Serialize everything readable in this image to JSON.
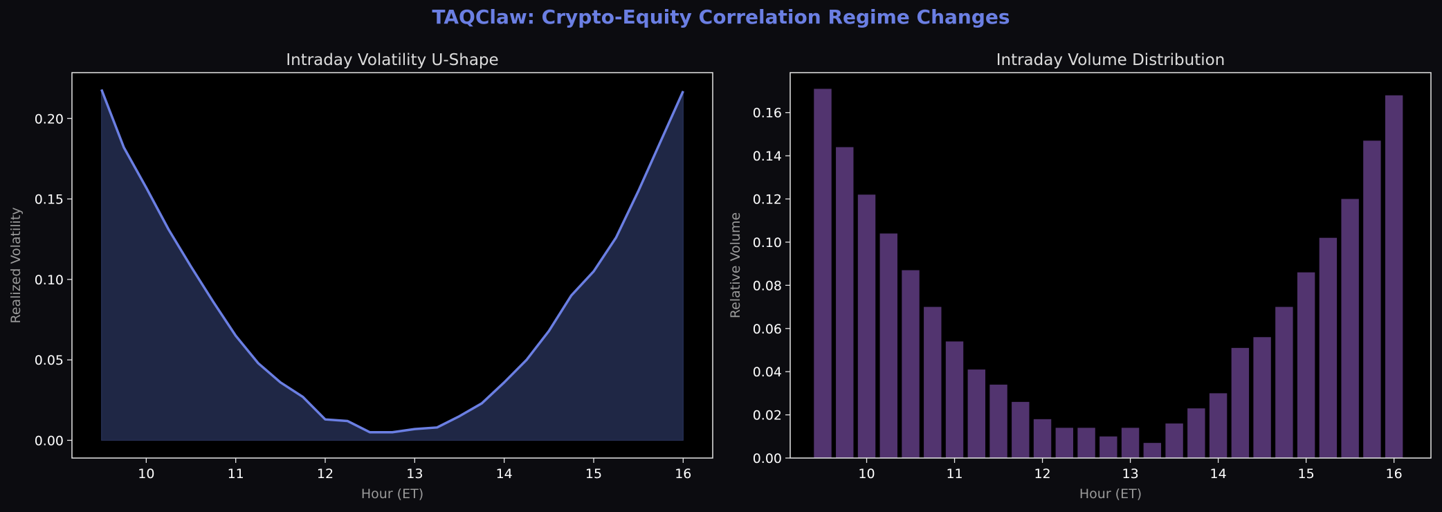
{
  "suptitle": "TAQClaw: Crypto-Equity Correlation Regime Changes",
  "colors": {
    "figure_bg": "#0c0c10",
    "axes_bg": "#000000",
    "spine": "#e6e6e6",
    "line": "#6b7fe3",
    "area_fill": "#1f2745",
    "bar": "#52346f",
    "title_text": "#dcdcdc",
    "label_text": "#9a9a9a",
    "tick_text": "#ffffff"
  },
  "chart_data": [
    {
      "type": "area",
      "title": "Intraday Volatility U-Shape",
      "xlabel": "Hour (ET)",
      "ylabel": "Realized Volatility",
      "xlim": [
        9.17,
        16.33
      ],
      "ylim": [
        -0.011,
        0.2285
      ],
      "xticks": [
        10,
        11,
        12,
        13,
        14,
        15,
        16
      ],
      "yticks": [
        0.0,
        0.05,
        0.1,
        0.15,
        0.2
      ],
      "ytick_labels": [
        "0.00",
        "0.05",
        "0.10",
        "0.15",
        "0.20"
      ],
      "grid": false,
      "x": [
        9.5,
        9.75,
        10.0,
        10.25,
        10.5,
        10.75,
        11.0,
        11.25,
        11.5,
        11.75,
        12.0,
        12.25,
        12.5,
        12.75,
        13.0,
        13.25,
        13.5,
        13.75,
        14.0,
        14.25,
        14.5,
        14.75,
        15.0,
        15.25,
        15.5,
        15.75,
        16.0
      ],
      "y": [
        0.218,
        0.182,
        0.157,
        0.131,
        0.108,
        0.086,
        0.065,
        0.048,
        0.036,
        0.027,
        0.013,
        0.012,
        0.005,
        0.005,
        0.007,
        0.008,
        0.015,
        0.023,
        0.036,
        0.05,
        0.068,
        0.09,
        0.105,
        0.126,
        0.155,
        0.186,
        0.217
      ]
    },
    {
      "type": "bar",
      "title": "Intraday Volume Distribution",
      "xlabel": "Hour (ET)",
      "ylabel": "Relative Volume",
      "xlim": [
        9.13,
        16.42
      ],
      "ylim": [
        0.0,
        0.1785
      ],
      "xticks": [
        10,
        11,
        12,
        13,
        14,
        15,
        16
      ],
      "yticks": [
        0.0,
        0.02,
        0.04,
        0.06,
        0.08,
        0.1,
        0.12,
        0.14,
        0.16
      ],
      "ytick_labels": [
        "0.00",
        "0.02",
        "0.04",
        "0.06",
        "0.08",
        "0.10",
        "0.12",
        "0.14",
        "0.16"
      ],
      "grid": false,
      "bar_width": 0.2,
      "x": [
        9.5,
        9.75,
        10.0,
        10.25,
        10.5,
        10.75,
        11.0,
        11.25,
        11.5,
        11.75,
        12.0,
        12.25,
        12.5,
        12.75,
        13.0,
        13.25,
        13.5,
        13.75,
        14.0,
        14.25,
        14.5,
        14.75,
        15.0,
        15.25,
        15.5,
        15.75,
        16.0
      ],
      "values": [
        0.171,
        0.144,
        0.122,
        0.104,
        0.087,
        0.07,
        0.054,
        0.041,
        0.034,
        0.026,
        0.018,
        0.014,
        0.014,
        0.01,
        0.014,
        0.007,
        0.016,
        0.023,
        0.03,
        0.051,
        0.056,
        0.07,
        0.086,
        0.102,
        0.12,
        0.147,
        0.168
      ]
    }
  ]
}
